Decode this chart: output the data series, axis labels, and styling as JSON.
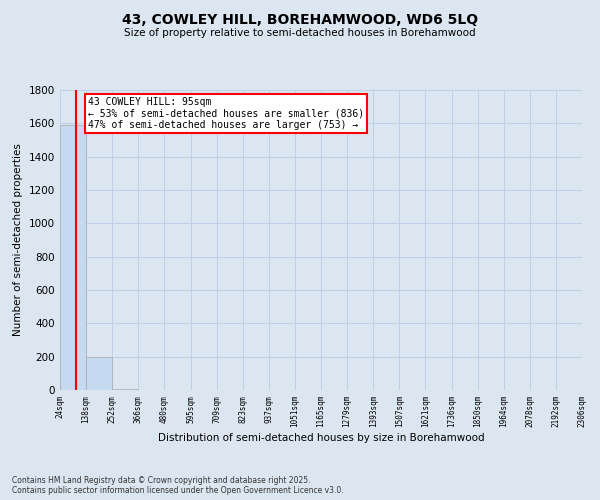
{
  "title": "43, COWLEY HILL, BOREHAMWOOD, WD6 5LQ",
  "subtitle": "Size of property relative to semi-detached houses in Borehamwood",
  "xlabel": "Distribution of semi-detached houses by size in Borehamwood",
  "ylabel": "Number of semi-detached properties",
  "bar_edges": [
    24,
    138,
    252,
    366,
    480,
    595,
    709,
    823,
    937,
    1051,
    1165,
    1279,
    1393,
    1507,
    1621,
    1736,
    1850,
    1964,
    2078,
    2192,
    2306
  ],
  "bar_heights": [
    1589,
    196,
    4,
    1,
    0,
    0,
    0,
    0,
    0,
    0,
    0,
    0,
    0,
    0,
    0,
    0,
    0,
    0,
    0,
    0
  ],
  "bar_color": "#c5d9f1",
  "property_size": 95,
  "property_label": "43 COWLEY HILL: 95sqm",
  "pct_smaller": 53,
  "n_smaller": 836,
  "pct_larger": 47,
  "n_larger": 753,
  "annotation_box_color": "#ff0000",
  "vline_color": "#ff0000",
  "ylim": [
    0,
    1800
  ],
  "yticks": [
    0,
    200,
    400,
    600,
    800,
    1000,
    1200,
    1400,
    1600,
    1800
  ],
  "grid_color": "#c0cfe8",
  "background_color": "#dce6f1",
  "plot_bg_color": "#dce6f1",
  "footer": "Contains HM Land Registry data © Crown copyright and database right 2025.\nContains public sector information licensed under the Open Government Licence v3.0.",
  "tick_labels": [
    "24sqm",
    "138sqm",
    "252sqm",
    "366sqm",
    "480sqm",
    "595sqm",
    "709sqm",
    "823sqm",
    "937sqm",
    "1051sqm",
    "1165sqm",
    "1279sqm",
    "1393sqm",
    "1507sqm",
    "1621sqm",
    "1736sqm",
    "1850sqm",
    "1964sqm",
    "2078sqm",
    "2192sqm",
    "2306sqm"
  ]
}
